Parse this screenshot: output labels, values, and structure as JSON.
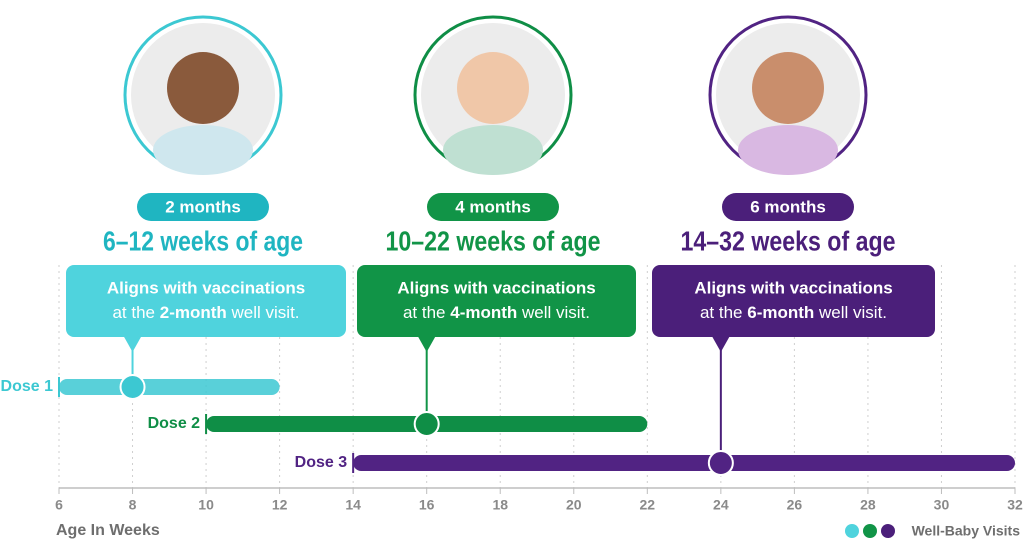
{
  "chart_data": {
    "type": "range",
    "xlabel": "Age In Weeks",
    "xlim": [
      6,
      32
    ],
    "xticks": [
      6,
      8,
      10,
      12,
      14,
      16,
      18,
      20,
      22,
      24,
      26,
      28,
      30,
      32
    ],
    "grid": true,
    "legend": "Well-Baby Visits",
    "series": [
      {
        "name": "Dose 1",
        "color": "#3cc8d2",
        "start": 6,
        "end": 12,
        "visit": 8,
        "month_label": "2 months",
        "age_label": "6–12 weeks of age",
        "note": [
          "Aligns with vaccinations",
          "at the",
          "2-month",
          "well visit."
        ]
      },
      {
        "name": "Dose 2",
        "color": "#0f8e46",
        "start": 10,
        "end": 22,
        "visit": 16,
        "month_label": "4 months",
        "age_label": "10–22 weeks of age",
        "note": [
          "Aligns with vaccinations",
          "at the",
          "4-month",
          "well visit."
        ]
      },
      {
        "name": "Dose 3",
        "color": "#512383",
        "start": 14,
        "end": 32,
        "visit": 24,
        "month_label": "6 months",
        "age_label": "14–32 weeks of age",
        "note": [
          "Aligns with vaccinations",
          "at the",
          "6-month",
          "well visit."
        ]
      }
    ]
  }
}
